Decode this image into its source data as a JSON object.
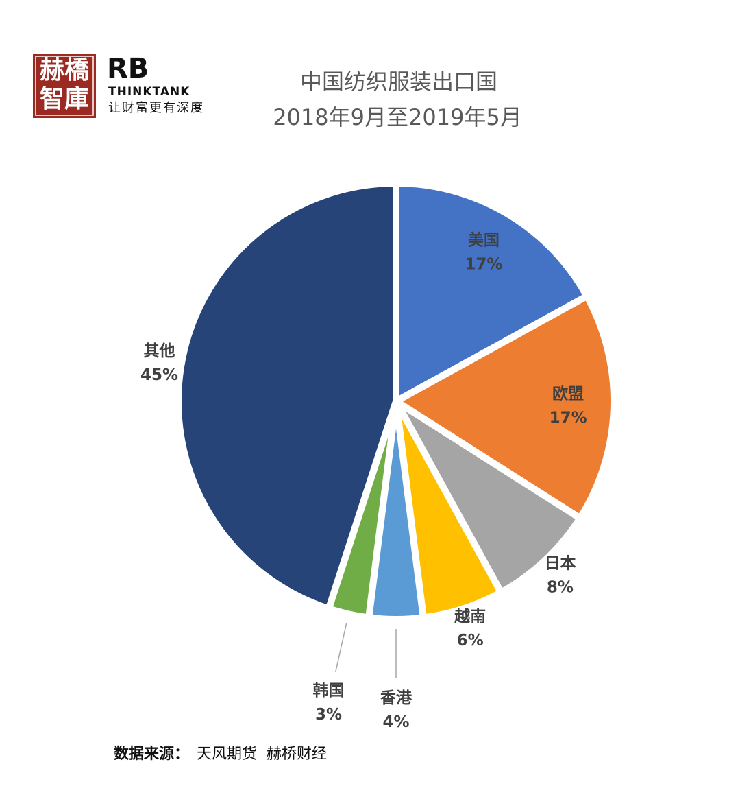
{
  "logo": {
    "mark_top": "赫橋",
    "mark_bottom": "智庫",
    "brand": "RB",
    "brand_sub": "THINKTANK",
    "slogan": "让财富更有深度"
  },
  "chart_data": {
    "type": "pie",
    "title": "中国纺织服装出口国",
    "subtitle": "2018年9月至2019年5月",
    "categories": [
      "美国",
      "欧盟",
      "日本",
      "越南",
      "香港",
      "韩国",
      "其他"
    ],
    "values": [
      17,
      17,
      8,
      6,
      4,
      3,
      45
    ],
    "value_labels": [
      "17%",
      "17%",
      "8%",
      "6%",
      "4%",
      "3%",
      "45%"
    ],
    "colors": [
      "#4472c4",
      "#ed7d31",
      "#a5a5a5",
      "#ffc000",
      "#5b9bd5",
      "#70ad47",
      "#264478"
    ],
    "source_label": "数据来源：",
    "source": "天风期货  赫桥财经"
  }
}
